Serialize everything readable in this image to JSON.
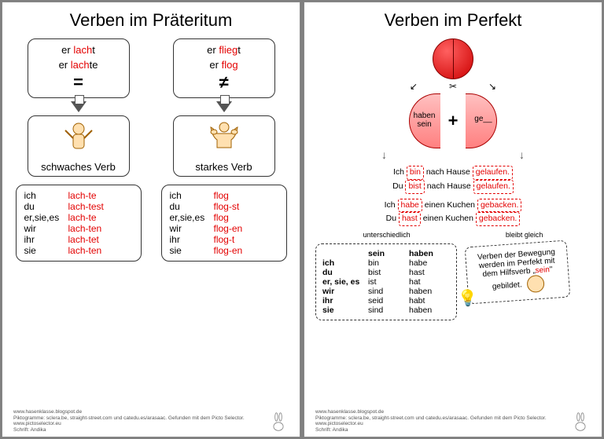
{
  "page1": {
    "title_a": "Verben im ",
    "title_b": "Präteritum",
    "left": {
      "ex1_a": "er ",
      "ex1_b": "lach",
      "ex1_c": "t",
      "ex2_a": "er ",
      "ex2_b": "lach",
      "ex2_c": "te",
      "symbol": "=",
      "label": "schwaches Verb",
      "table": [
        [
          "ich",
          "lach-te"
        ],
        [
          "du",
          "lach-test"
        ],
        [
          "er,sie,es",
          "lach-te"
        ],
        [
          "wir",
          "lach-ten"
        ],
        [
          "ihr",
          "lach-tet"
        ],
        [
          "sie",
          "lach-ten"
        ]
      ]
    },
    "right": {
      "ex1_a": "er ",
      "ex1_b": "flieg",
      "ex1_c": "t",
      "ex2_a": "er ",
      "ex2_b": "flog",
      "ex2_c": "",
      "symbol": "≠",
      "label": "starkes Verb",
      "table": [
        [
          "ich",
          "flog"
        ],
        [
          "du",
          "flog-st"
        ],
        [
          "er,sie,es",
          "flog"
        ],
        [
          "wir",
          "flog-en"
        ],
        [
          "ihr",
          "flog-t"
        ],
        [
          "sie",
          "flog-en"
        ]
      ]
    }
  },
  "page2": {
    "title": "Verben im Perfekt",
    "half_left": "haben\nsein",
    "half_right": "ge__",
    "ex1": [
      {
        "p": "Ich",
        "aux": "bin",
        "mid": "nach Hause",
        "pp": "gelaufen."
      },
      {
        "p": "Du",
        "aux": "bist",
        "mid": "nach Hause",
        "pp": "gelaufen."
      }
    ],
    "ex2": [
      {
        "p": "Ich",
        "aux": "habe",
        "mid": "einen Kuchen",
        "pp": "gebacken."
      },
      {
        "p": "Du",
        "aux": "hast",
        "mid": "einen Kuchen",
        "pp": "gebacken."
      }
    ],
    "ann_left": "unterschiedlich",
    "ann_right": "bleibt gleich",
    "sh_head": [
      "",
      "sein",
      "haben"
    ],
    "sh_rows": [
      [
        "ich",
        "bin",
        "habe"
      ],
      [
        "du",
        "bist",
        "hast"
      ],
      [
        "er, sie, es",
        "ist",
        "hat"
      ],
      [
        "wir",
        "sind",
        "haben"
      ],
      [
        "ihr",
        "seid",
        "habt"
      ],
      [
        "sie",
        "sind",
        "haben"
      ]
    ],
    "note_a": "Verben der Bewegung werden im Perfekt mit dem Hilfsverb „",
    "note_b": "sein",
    "note_c": "\" gebildet."
  },
  "footer": {
    "l1": "www.hasenklasse.blogspot.de",
    "l2": "Piktogramme: sclera.be, straight-street.com und catedu.es/arasaac. Gefunden mit dem Picto Selector.",
    "l3": "www.pictoselector.eu",
    "l4": "Schrift: Andika"
  }
}
